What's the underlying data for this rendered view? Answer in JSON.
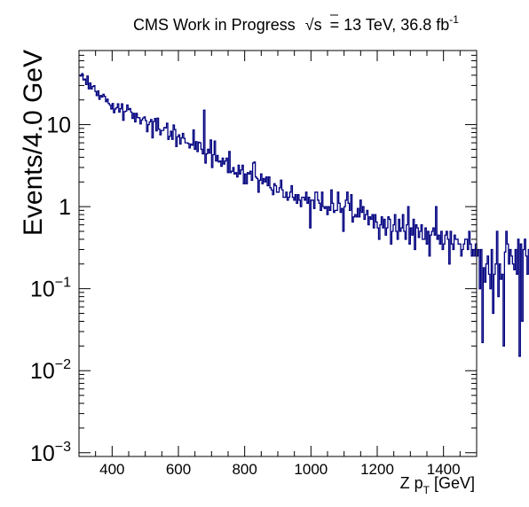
{
  "chart_data": {
    "type": "line",
    "style": "step-histogram",
    "title": {
      "prefix": "CMS Work in Progress",
      "sqrt": "s",
      "mid": "= 13 TeV, 36.8 fb",
      "sup": "-1"
    },
    "ylabel": "Events/4.0 GeV",
    "xlabel": {
      "main": "Z p",
      "sub": "T",
      "unit": " [GeV]"
    },
    "xlim": [
      300,
      1500
    ],
    "ylim": [
      0.0009,
      80
    ],
    "yscale": "log",
    "bin_width": 4.0,
    "line_color": "#00007f",
    "x_ticks": [
      400,
      600,
      800,
      1000,
      1200,
      1400
    ],
    "x_tick_labels": [
      "400",
      "600",
      "800",
      "1000",
      "1200",
      "1400"
    ],
    "y_ticks": [
      {
        "value": 10,
        "base": "10",
        "exp": ""
      },
      {
        "value": 1,
        "base": "1",
        "exp": ""
      },
      {
        "value": 0.1,
        "base": "10",
        "exp": "−1"
      },
      {
        "value": 0.01,
        "base": "10",
        "exp": "−2"
      },
      {
        "value": 0.001,
        "base": "10",
        "exp": "−3"
      }
    ],
    "series": [
      {
        "x_start": 300,
        "values": [
          40.0,
          39.2,
          41.9,
          35.0,
          36.0,
          30.8,
          39.1,
          27.3,
          32.1,
          27.2,
          29.1,
          29.8,
          25.4,
          22.6,
          25.7,
          20.4,
          22.6,
          21.7,
          23.4,
          22.1,
          19.0,
          20.4,
          18.1,
          17.3,
          15.5,
          18.1,
          14.0,
          15.5,
          16.1,
          17.9,
          14.2,
          15.6,
          17.9,
          11.3,
          14.4,
          14.6,
          17.3,
          15.2,
          15.7,
          14.2,
          11.9,
          13.7,
          10.8,
          13.7,
          12.2,
          12.1,
          10.2,
          11.4,
          12.0,
          12.4,
          11.2,
          8.2,
          10.0,
          10.8,
          11.5,
          6.9,
          10.9,
          11.9,
          8.4,
          12.0,
          8.8,
          7.5,
          8.5,
          8.5,
          9.2,
          9.1,
          10.4,
          6.6,
          7.2,
          8.3,
          6.6,
          9.9,
          8.7,
          5.4,
          7.1,
          7.5,
          5.8,
          6.9,
          7.8,
          6.8,
          6.0,
          6.0,
          5.9,
          5.2,
          5.8,
          5.6,
          8.6,
          5.0,
          6.2,
          4.7,
          6.1,
          6.0,
          5.0,
          4.4,
          15.0,
          3.4,
          4.4,
          5.0,
          4.5,
          6.5,
          3.0,
          4.3,
          6.3,
          3.6,
          4.2,
          3.5,
          3.6,
          3.1,
          3.9,
          3.3,
          3.6,
          3.9,
          2.6,
          4.7,
          2.6,
          2.7,
          3.0,
          2.5,
          2.6,
          2.3,
          3.2,
          2.5,
          2.8,
          3.2,
          1.9,
          2.5,
          1.9,
          2.6,
          2.5,
          2.7,
          2.1,
          3.4,
          3.5,
          2.3,
          2.2,
          1.5,
          2.1,
          2.5,
          1.9,
          2.2,
          2.0,
          2.3,
          1.8,
          2.3,
          1.7,
          1.6,
          1.4,
          1.9,
          1.8,
          1.5,
          1.5,
          1.7,
          2.1,
          1.6,
          1.3,
          1.3,
          1.5,
          1.2,
          1.3,
          1.5,
          1.8,
          1.3,
          1.2,
          1.4,
          1.1,
          1.4,
          1.2,
          1.0,
          1.3,
          1.3,
          1.2,
          1.5,
          1.1,
          1.3,
          0.55,
          1.2,
          1.2,
          0.95,
          1.5,
          1.5,
          1.2,
          1.1,
          0.9,
          1.5,
          1.0,
          0.95,
          1.0,
          0.8,
          1.0,
          0.9,
          1.6,
          1.1,
          0.85,
          0.9,
          0.9,
          1.5,
          1.1,
          0.85,
          0.95,
          0.5,
          1.0,
          1.2,
          1.5,
          1.1,
          0.9,
          1.4,
          0.65,
          0.75,
          0.8,
          0.75,
          0.95,
          0.75,
          1.2,
          0.85,
          1.0,
          0.7,
          0.8,
          0.9,
          0.6,
          0.75,
          0.7,
          0.8,
          0.55,
          0.8,
          0.65,
          0.55,
          0.4,
          0.6,
          0.75,
          0.55,
          0.7,
          0.45,
          0.55,
          0.75,
          0.7,
          0.35,
          0.5,
          0.6,
          0.8,
          0.5,
          0.4,
          0.7,
          0.5,
          0.55,
          0.8,
          0.5,
          0.4,
          0.6,
          1.0,
          0.35,
          0.55,
          0.45,
          0.7,
          0.3,
          0.6,
          0.55,
          0.42,
          0.5,
          0.6,
          0.4,
          0.4,
          0.55,
          0.35,
          0.5,
          0.25,
          0.45,
          0.5,
          0.55,
          0.45,
          1.0,
          0.4,
          0.45,
          0.35,
          0.5,
          0.3,
          0.35,
          0.45,
          0.5,
          0.4,
          0.2,
          0.5,
          0.35,
          0.3,
          0.45,
          0.4,
          0.4,
          0.35,
          0.35,
          0.25,
          0.3,
          0.35,
          0.4,
          0.4,
          0.3,
          0.5,
          0.35,
          0.25,
          0.3,
          0.25,
          0.35,
          0.25,
          0.3,
          0.1,
          0.3,
          0.022,
          0.18,
          0.12,
          0.2,
          0.25,
          0.15,
          0.1,
          0.3,
          0.05,
          0.15,
          0.2,
          0.5,
          0.08,
          0.2,
          0.13,
          0.15,
          0.02,
          0.28,
          0.5,
          0.35,
          0.2,
          0.3,
          0.25,
          0.2,
          0.17,
          0.3,
          0.15,
          0.4,
          0.015,
          0.35,
          0.04,
          0.3,
          0.4,
          0.25,
          0.15,
          0.3,
          0.1,
          0.12,
          0.2,
          0.1,
          0.08,
          0.15,
          0.12,
          0.18,
          0.3,
          0.15,
          0.05,
          0.2,
          0.1,
          0.2,
          0.3,
          0.1,
          0.15,
          0.2,
          0.2,
          0.15,
          0.3,
          0.06,
          0.18,
          0.2,
          0.1,
          0.3,
          0.12,
          0.2,
          0.25,
          0.15,
          0.13,
          0.2,
          0.2,
          0.15,
          0.1,
          0.25,
          0.1,
          0.05,
          0.2,
          0.4,
          0.0018,
          0.12,
          0.15,
          0.2,
          0.1,
          0.15,
          0.15,
          0.18,
          0.15,
          0.5,
          0.1,
          0.2,
          0.13,
          0.14,
          0.1,
          0.25,
          0.12,
          0.2,
          0.15,
          0.16,
          0.13,
          0.45,
          0.15,
          0.2,
          0.18,
          0.15,
          0.2,
          0.18,
          0.15,
          0.003,
          0.1,
          0.12,
          0.15,
          0.25,
          0.0045,
          0.12,
          0.18,
          0.15,
          0.1,
          0.12,
          0.2,
          0.15,
          0.15,
          0.1,
          0.12,
          0.15,
          0.2,
          0.17,
          0.15,
          0.0018,
          0.01,
          0.04,
          0.15,
          0.1,
          0.04,
          0.15
        ]
      }
    ]
  }
}
